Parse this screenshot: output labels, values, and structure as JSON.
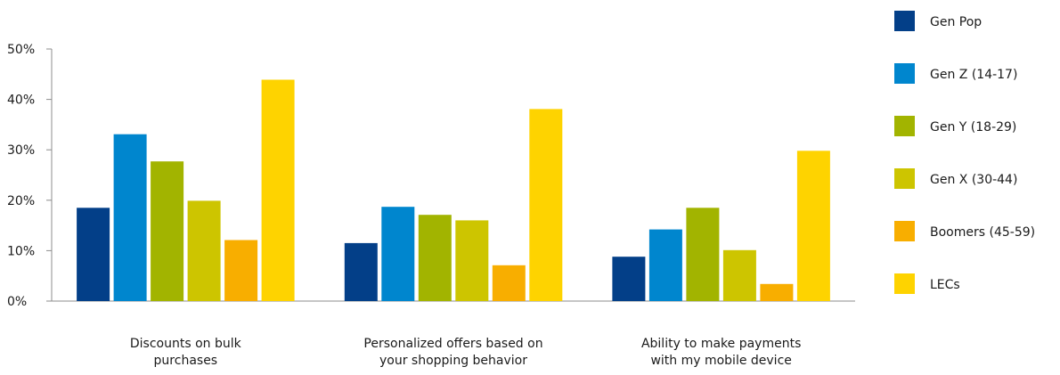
{
  "chart_data": {
    "type": "bar",
    "title": "",
    "xlabel": "",
    "ylabel": "",
    "ylim": [
      0,
      50
    ],
    "y_ticks": [
      0,
      10,
      20,
      30,
      40,
      50
    ],
    "y_tick_labels": [
      "0%",
      "10%",
      "20%",
      "30%",
      "40%",
      "50%"
    ],
    "grid": false,
    "legend_position": "right",
    "categories": [
      [
        "Discounts on bulk",
        "purchases"
      ],
      [
        "Personalized offers based on",
        "your shopping behavior"
      ],
      [
        "Ability to make payments",
        "with my mobile device"
      ]
    ],
    "series": [
      {
        "name": "Gen Pop",
        "color": "#033F88",
        "values": [
          18.5,
          11.5,
          8.8
        ]
      },
      {
        "name": "Gen Z (14-17)",
        "color": "#0086CE",
        "values": [
          33.1,
          18.7,
          14.2
        ]
      },
      {
        "name": "Gen Y (18-29)",
        "color": "#A2B400",
        "values": [
          27.7,
          17.1,
          18.5
        ]
      },
      {
        "name": "Gen X (30-44)",
        "color": "#CDC500",
        "values": [
          19.9,
          16.0,
          10.1
        ]
      },
      {
        "name": "Boomers (45-59)",
        "color": "#F8AE00",
        "values": [
          12.1,
          7.1,
          3.4
        ]
      },
      {
        "name": "LECs",
        "color": "#FED300",
        "values": [
          43.9,
          38.1,
          29.8
        ]
      }
    ]
  }
}
